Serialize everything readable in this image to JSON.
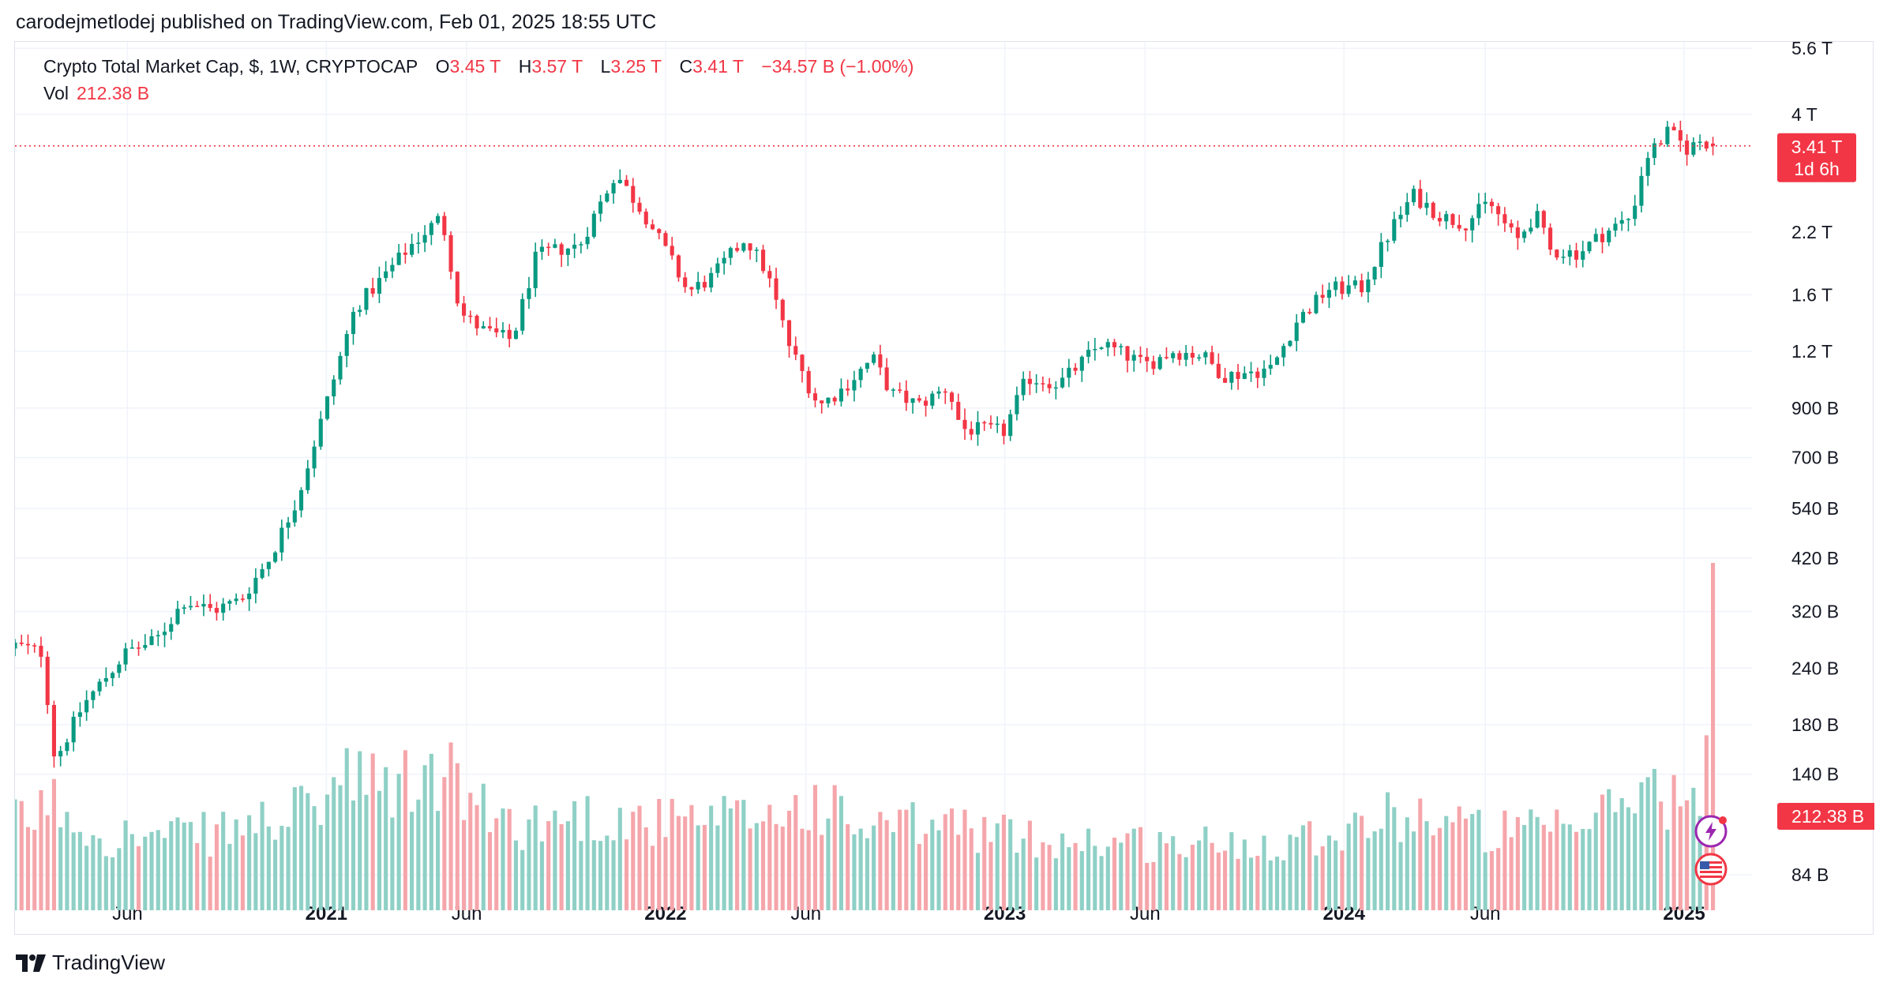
{
  "header": {
    "published_by": "carodejmetlodej published on TradingView.com, Feb 01, 2025 18:55 UTC"
  },
  "legend": {
    "symbol": "Crypto Total Market Cap, $, 1W, CRYPTOCAP",
    "o_label": "O",
    "o_value": "3.45 T",
    "h_label": "H",
    "h_value": "3.57 T",
    "l_label": "L",
    "l_value": "3.25 T",
    "c_label": "C",
    "c_value": "3.41 T",
    "change": "−34.57 B (−1.00%)",
    "vol_label": "Vol",
    "vol_value": "212.38 B"
  },
  "price_tag": {
    "value": "3.41 T",
    "countdown": "1d 6h"
  },
  "volume_tag": {
    "value": "212.38 B"
  },
  "footer": {
    "brand": "TradingView"
  },
  "colors": {
    "up": "#089981",
    "down": "#f23645",
    "up_vol": "#8fd0c6",
    "down_vol": "#f5a6ab",
    "grid": "#f0f3fa"
  },
  "chart_data": {
    "type": "candlestick",
    "title": "Crypto Total Market Cap, $, 1W, CRYPTOCAP",
    "scale": "log",
    "y_ticks": [
      "5.6 T",
      "4 T",
      "2.2 T",
      "1.6 T",
      "1.2 T",
      "900 B",
      "700 B",
      "540 B",
      "420 B",
      "320 B",
      "240 B",
      "180 B",
      "140 B",
      "84 B"
    ],
    "x_ticks": [
      "Jun",
      "2021",
      "Jun",
      "2022",
      "Jun",
      "2023",
      "Jun",
      "2024",
      "Jun",
      "2025"
    ],
    "x_range": [
      "2020-02-01",
      "2025-03-15"
    ],
    "y_range_B": [
      55,
      6200
    ],
    "last": {
      "open": 3450,
      "high": 3570,
      "low": 3250,
      "close": 3410,
      "volume": 212.38
    },
    "close_anchors_B": [
      [
        "2020-02-01",
        270
      ],
      [
        "2020-03-01",
        260
      ],
      [
        "2020-03-15",
        150
      ],
      [
        "2020-04-15",
        200
      ],
      [
        "2020-06-01",
        262
      ],
      [
        "2020-07-01",
        275
      ],
      [
        "2020-08-01",
        338
      ],
      [
        "2020-09-01",
        322
      ],
      [
        "2020-10-01",
        340
      ],
      [
        "2020-11-01",
        420
      ],
      [
        "2020-12-01",
        570
      ],
      [
        "2021-01-01",
        920
      ],
      [
        "2021-02-01",
        1500
      ],
      [
        "2021-03-01",
        1730
      ],
      [
        "2021-04-01",
        2050
      ],
      [
        "2021-05-05",
        2380
      ],
      [
        "2021-05-25",
        1460
      ],
      [
        "2021-06-20",
        1330
      ],
      [
        "2021-07-20",
        1270
      ],
      [
        "2021-08-15",
        1950
      ],
      [
        "2021-09-10",
        2020
      ],
      [
        "2021-09-30",
        2050
      ],
      [
        "2021-11-08",
        2970
      ],
      [
        "2021-12-10",
        2400
      ],
      [
        "2022-01-10",
        1860
      ],
      [
        "2022-01-25",
        1620
      ],
      [
        "2022-02-20",
        1750
      ],
      [
        "2022-03-28",
        2140
      ],
      [
        "2022-04-20",
        1790
      ],
      [
        "2022-05-15",
        1220
      ],
      [
        "2022-06-15",
        910
      ],
      [
        "2022-07-10",
        990
      ],
      [
        "2022-08-12",
        1160
      ],
      [
        "2022-09-01",
        970
      ],
      [
        "2022-10-01",
        915
      ],
      [
        "2022-11-01",
        1000
      ],
      [
        "2022-11-15",
        810
      ],
      [
        "2022-12-31",
        800
      ],
      [
        "2023-01-25",
        1050
      ],
      [
        "2023-03-01",
        1020
      ],
      [
        "2023-04-15",
        1250
      ],
      [
        "2023-06-01",
        1120
      ],
      [
        "2023-07-01",
        1200
      ],
      [
        "2023-08-01",
        1180
      ],
      [
        "2023-08-25",
        1060
      ],
      [
        "2023-10-15",
        1100
      ],
      [
        "2023-11-10",
        1390
      ],
      [
        "2023-12-15",
        1650
      ],
      [
        "2024-01-20",
        1660
      ],
      [
        "2024-02-20",
        2220
      ],
      [
        "2024-03-15",
        2660
      ],
      [
        "2024-04-15",
        2380
      ],
      [
        "2024-05-10",
        2300
      ],
      [
        "2024-06-05",
        2560
      ],
      [
        "2024-07-05",
        2100
      ],
      [
        "2024-07-25",
        2420
      ],
      [
        "2024-08-10",
        2000
      ],
      [
        "2024-09-10",
        1980
      ],
      [
        "2024-10-01",
        2150
      ],
      [
        "2024-11-05",
        2380
      ],
      [
        "2024-11-20",
        3200
      ],
      [
        "2024-12-15",
        3660
      ],
      [
        "2025-01-05",
        3350
      ],
      [
        "2025-01-20",
        3520
      ],
      [
        "2025-02-01",
        3410
      ]
    ],
    "volume_anchors_B": [
      [
        "2020-02-01",
        95
      ],
      [
        "2020-03-15",
        120
      ],
      [
        "2020-05-01",
        85
      ],
      [
        "2020-07-01",
        80
      ],
      [
        "2020-09-01",
        85
      ],
      [
        "2020-11-01",
        100
      ],
      [
        "2020-12-15",
        110
      ],
      [
        "2021-01-15",
        145
      ],
      [
        "2021-03-01",
        135
      ],
      [
        "2021-05-15",
        150
      ],
      [
        "2021-06-15",
        110
      ],
      [
        "2021-08-01",
        95
      ],
      [
        "2021-10-01",
        105
      ],
      [
        "2021-12-01",
        100
      ],
      [
        "2022-02-01",
        95
      ],
      [
        "2022-05-15",
        110
      ],
      [
        "2022-06-15",
        120
      ],
      [
        "2022-08-01",
        90
      ],
      [
        "2022-11-15",
        95
      ],
      [
        "2023-01-15",
        80
      ],
      [
        "2023-04-01",
        78
      ],
      [
        "2023-07-01",
        73
      ],
      [
        "2023-10-01",
        75
      ],
      [
        "2023-12-01",
        85
      ],
      [
        "2024-03-15",
        110
      ],
      [
        "2024-06-01",
        88
      ],
      [
        "2024-09-01",
        87
      ],
      [
        "2024-11-20",
        140
      ],
      [
        "2024-12-20",
        125
      ],
      [
        "2025-01-15",
        110
      ],
      [
        "2025-02-01",
        212.38
      ]
    ]
  }
}
